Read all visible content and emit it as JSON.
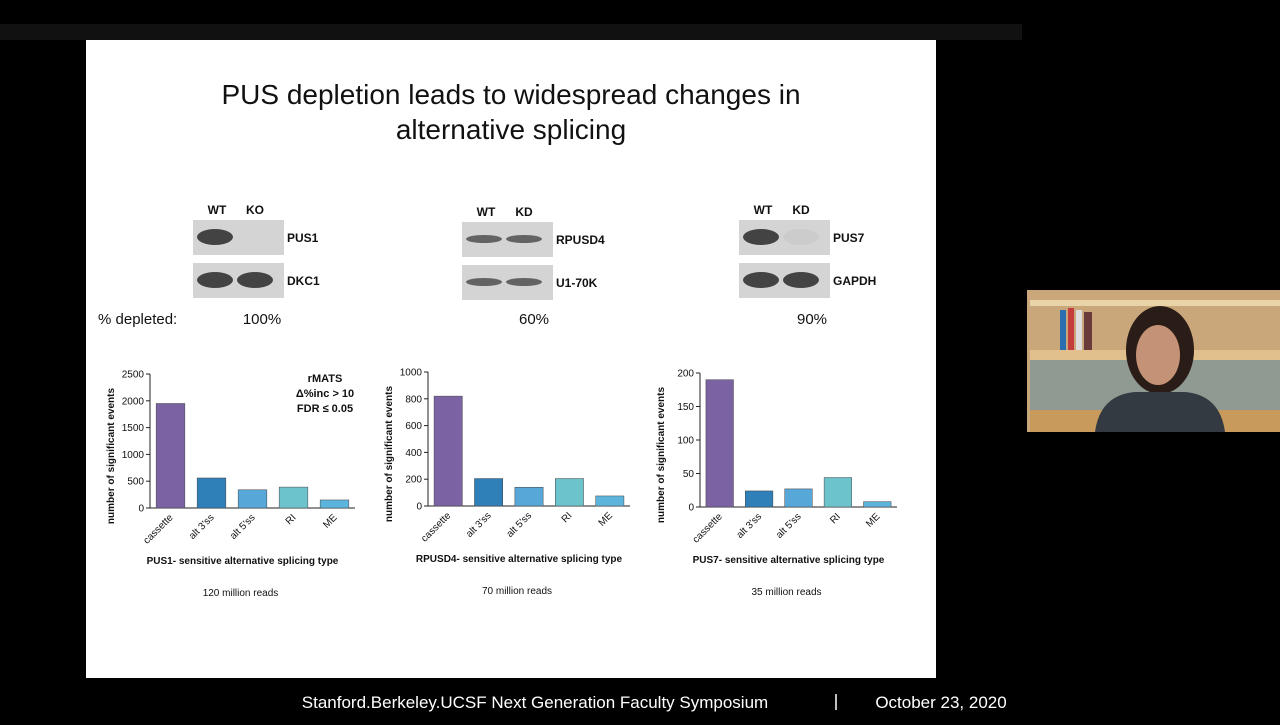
{
  "slide": {
    "title_line1": "PUS depletion leads to widespread changes in",
    "title_line2": "alternative splicing",
    "depleted_label": "% depleted:",
    "blots": [
      {
        "lanes": [
          "WT",
          "KO"
        ],
        "proteins": [
          "PUS1",
          "DKC1"
        ],
        "depleted": "100%"
      },
      {
        "lanes": [
          "WT",
          "KD"
        ],
        "proteins": [
          "RPUSD4",
          "U1-70K"
        ],
        "depleted": "60%"
      },
      {
        "lanes": [
          "WT",
          "KD"
        ],
        "proteins": [
          "PUS7",
          "GAPDH"
        ],
        "depleted": "90%"
      }
    ]
  },
  "chart_data": [
    {
      "type": "bar",
      "categories": [
        "cassette",
        "alt 3'ss",
        "alt 5'ss",
        "RI",
        "ME"
      ],
      "values": [
        1950,
        560,
        340,
        390,
        150
      ],
      "colors": [
        "#7b62a3",
        "#2f7fb8",
        "#57a7d8",
        "#6cc3cc",
        "#5cb4dc"
      ],
      "ylim": [
        0,
        2500
      ],
      "yticks": [
        0,
        500,
        1000,
        1500,
        2000,
        2500
      ],
      "y_label": "number of significant events",
      "x_label": "PUS1- sensitive alternative splicing type",
      "note": "120 million reads",
      "annotations": [
        "rMATS",
        "Δ%inc > 10",
        "FDR ≤ 0.05"
      ]
    },
    {
      "type": "bar",
      "categories": [
        "cassette",
        "alt 3'ss",
        "alt 5'ss",
        "RI",
        "ME"
      ],
      "values": [
        820,
        205,
        140,
        205,
        75
      ],
      "colors": [
        "#7b62a3",
        "#2f7fb8",
        "#57a7d8",
        "#6cc3cc",
        "#5cb4dc"
      ],
      "ylim": [
        0,
        1000
      ],
      "yticks": [
        0,
        200,
        400,
        600,
        800,
        1000
      ],
      "y_label": "number of significant events",
      "x_label": "RPUSD4- sensitive alternative splicing type",
      "note": "70 million reads"
    },
    {
      "type": "bar",
      "categories": [
        "cassette",
        "alt 3'ss",
        "alt 5'ss",
        "RI",
        "ME"
      ],
      "values": [
        190,
        24,
        27,
        44,
        8
      ],
      "colors": [
        "#7b62a3",
        "#2f7fb8",
        "#57a7d8",
        "#6cc3cc",
        "#5cb4dc"
      ],
      "ylim": [
        0,
        200
      ],
      "yticks": [
        0,
        50,
        100,
        150,
        200
      ],
      "y_label": "number of significant events",
      "x_label": "PUS7- sensitive alternative splicing type",
      "note": "35 million reads"
    }
  ],
  "footer": {
    "event": "Stanford.Berkeley.UCSF Next Generation Faculty Symposium",
    "date": "October 23, 2020"
  }
}
